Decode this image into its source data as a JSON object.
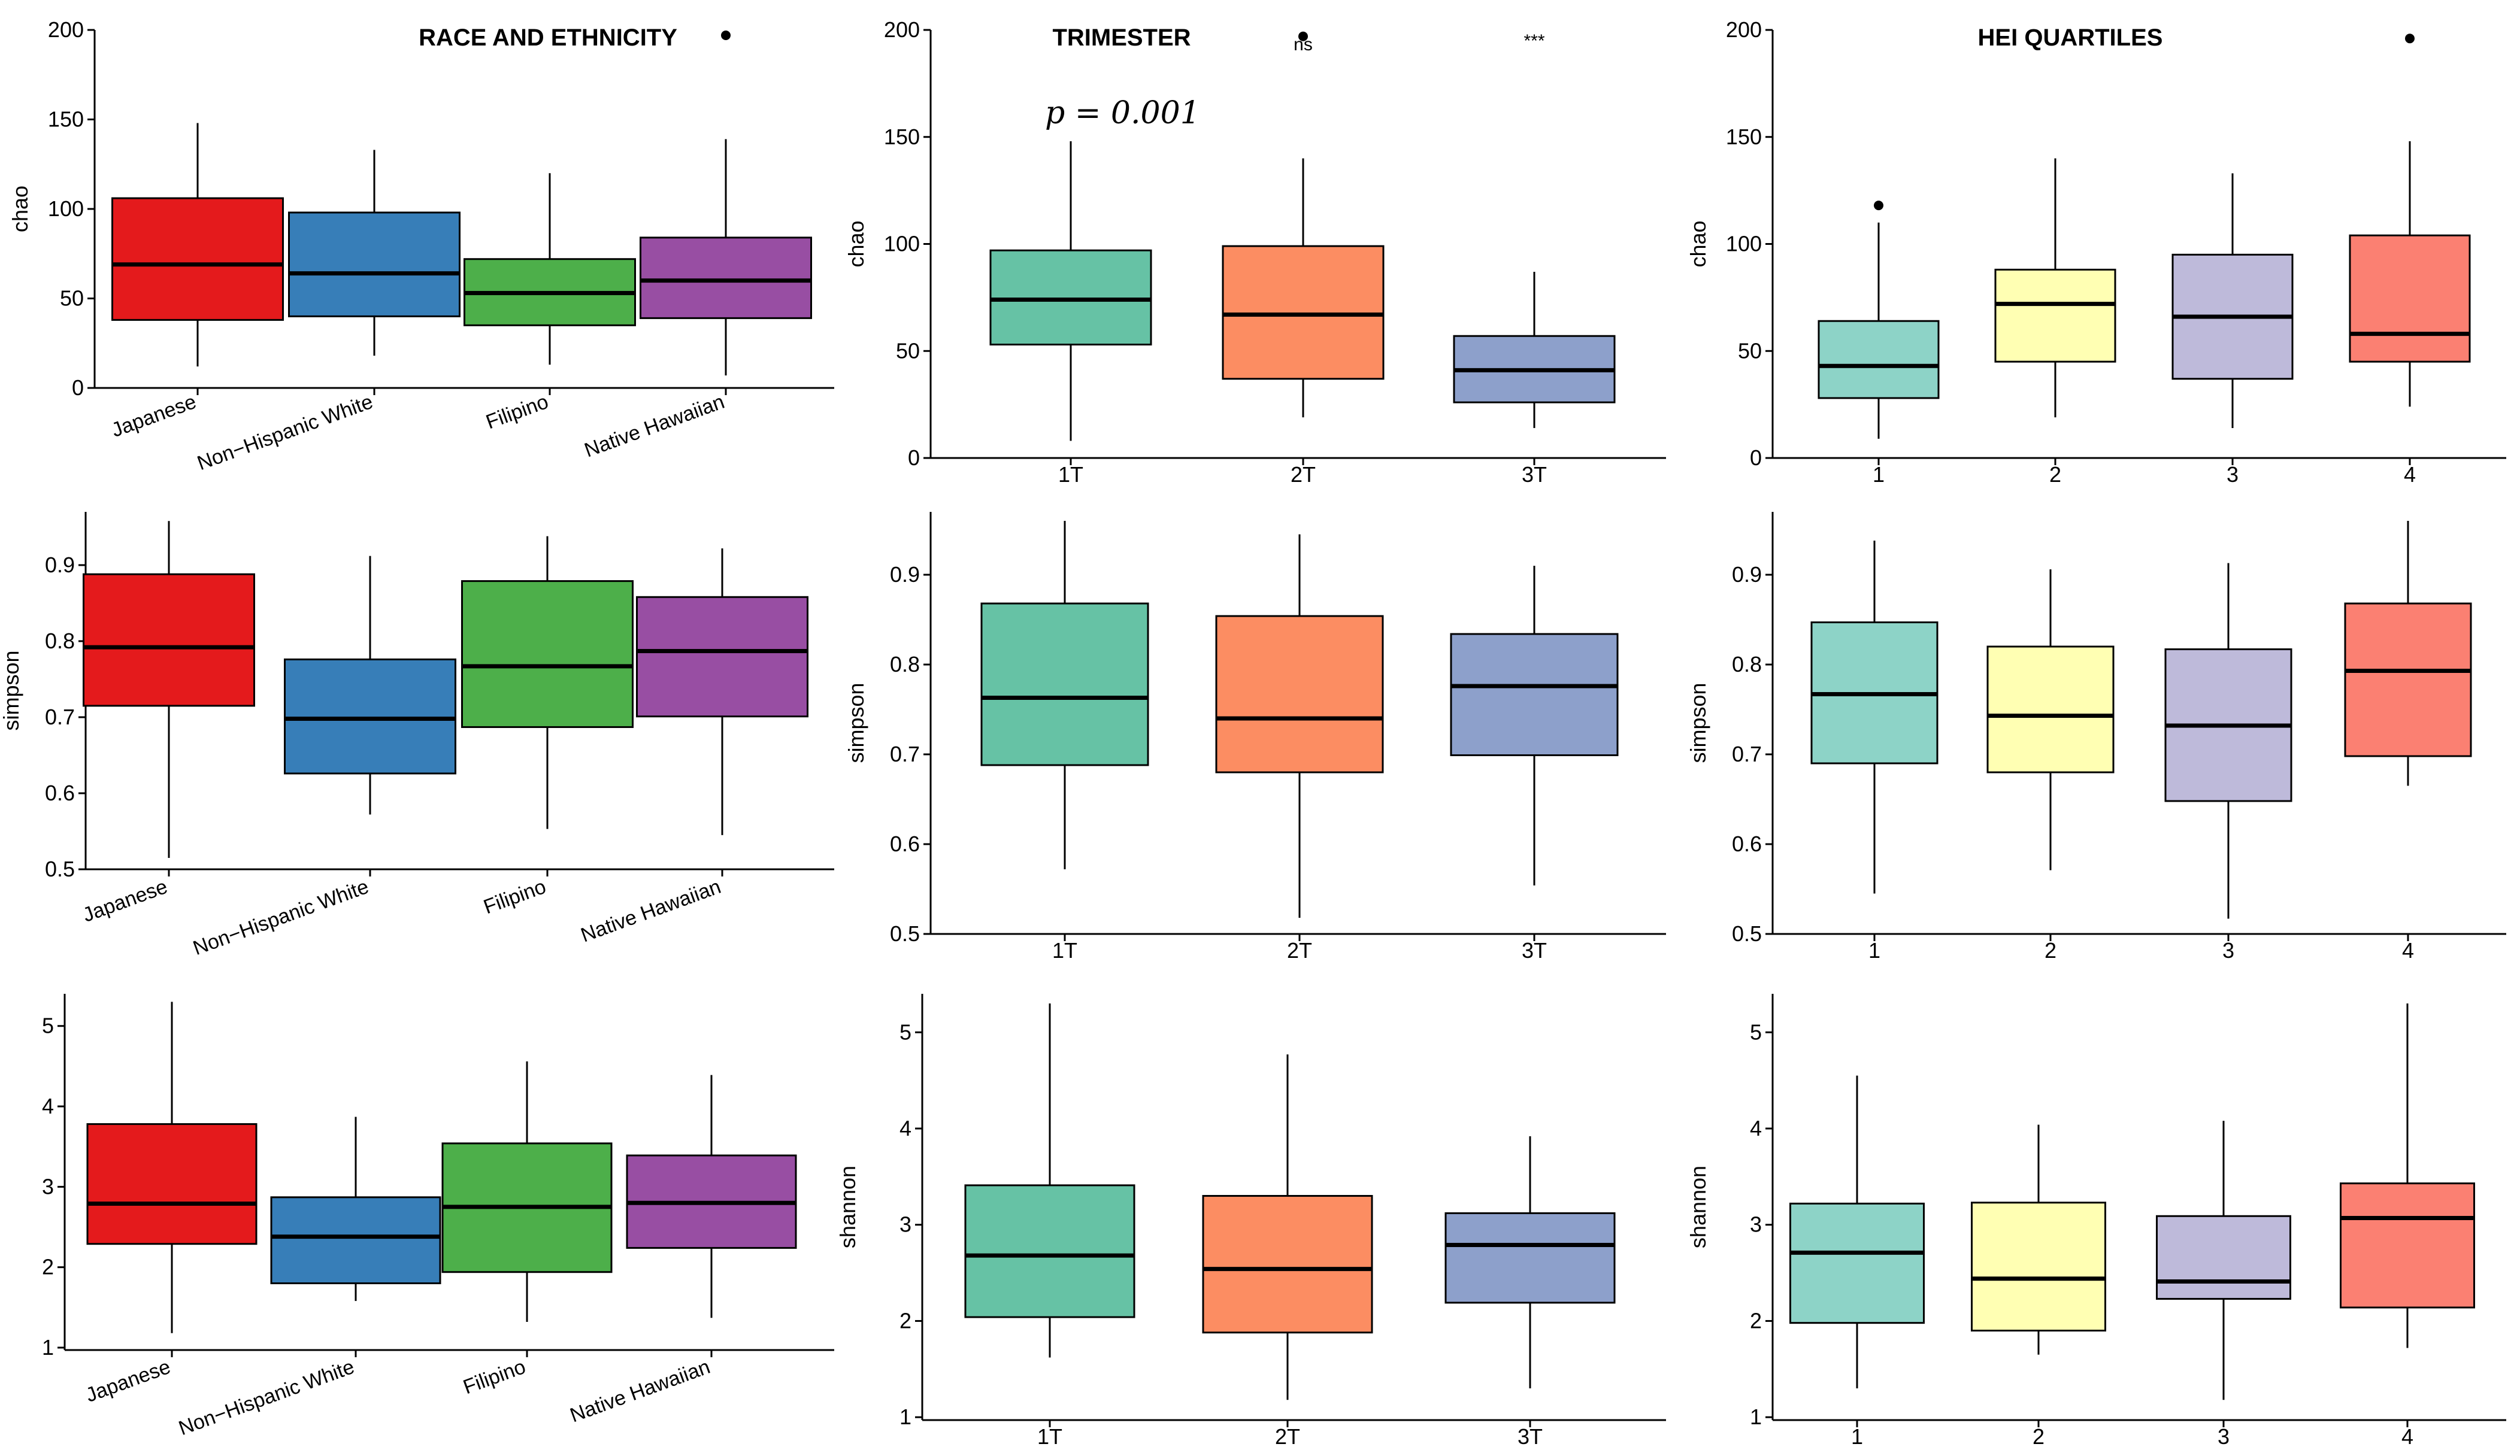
{
  "column_titles": [
    "RACE AND ETHNICITY",
    "TRIMESTER",
    "HEI QUARTILES"
  ],
  "annotations": {
    "p_value": "p = 0.001",
    "sig_2T": "ns",
    "sig_3T": "***"
  },
  "chart_data": [
    {
      "type": "box",
      "title": "RACE AND ETHNICITY",
      "ylabel": "chao",
      "ylim": [
        0,
        200
      ],
      "yticks": [
        0,
        50,
        100,
        150,
        200
      ],
      "rotated_labels": true,
      "categories": [
        "Japanese",
        "Non−Hispanic White",
        "Filipino",
        "Native Hawaiian"
      ],
      "colors": [
        "#e41a1c",
        "#377eb8",
        "#4daf4a",
        "#984ea3"
      ],
      "boxes": [
        {
          "min": 12,
          "q1": 38,
          "median": 69,
          "q3": 106,
          "max": 148,
          "outliers": []
        },
        {
          "min": 18,
          "q1": 40,
          "median": 64,
          "q3": 98,
          "max": 133,
          "outliers": []
        },
        {
          "min": 13,
          "q1": 35,
          "median": 53,
          "q3": 72,
          "max": 120,
          "outliers": []
        },
        {
          "min": 7,
          "q1": 39,
          "median": 60,
          "q3": 84,
          "max": 139,
          "outliers": [
            197
          ]
        }
      ]
    },
    {
      "type": "box",
      "title": "TRIMESTER",
      "ylabel": "chao",
      "ylim": [
        0,
        200
      ],
      "yticks": [
        0,
        50,
        100,
        150,
        200
      ],
      "rotated_labels": false,
      "categories": [
        "1T",
        "2T",
        "3T"
      ],
      "colors": [
        "#66c2a5",
        "#fc8d62",
        "#8da0cb"
      ],
      "boxes": [
        {
          "min": 8,
          "q1": 53,
          "median": 74,
          "q3": 97,
          "max": 148,
          "outliers": []
        },
        {
          "min": 19,
          "q1": 37,
          "median": 67,
          "q3": 99,
          "max": 140,
          "outliers": [
            197
          ]
        },
        {
          "min": 14,
          "q1": 26,
          "median": 41,
          "q3": 57,
          "max": 87,
          "outliers": []
        }
      ]
    },
    {
      "type": "box",
      "title": "HEI QUARTILES",
      "ylabel": "chao",
      "ylim": [
        0,
        200
      ],
      "yticks": [
        0,
        50,
        100,
        150,
        200
      ],
      "rotated_labels": false,
      "categories": [
        "1",
        "2",
        "3",
        "4"
      ],
      "colors": [
        "#8dd3c7",
        "#ffffb3",
        "#bebada",
        "#fb8072"
      ],
      "boxes": [
        {
          "min": 9,
          "q1": 28,
          "median": 43,
          "q3": 64,
          "max": 110,
          "outliers": [
            118
          ]
        },
        {
          "min": 19,
          "q1": 45,
          "median": 72,
          "q3": 88,
          "max": 140,
          "outliers": []
        },
        {
          "min": 14,
          "q1": 37,
          "median": 66,
          "q3": 95,
          "max": 133,
          "outliers": []
        },
        {
          "min": 24,
          "q1": 45,
          "median": 58,
          "q3": 104,
          "max": 148,
          "outliers": [
            196
          ]
        }
      ]
    },
    {
      "type": "box",
      "title": "",
      "ylabel": "simpson",
      "ylim": [
        0.5,
        0.97
      ],
      "yticks": [
        0.5,
        0.6,
        0.7,
        0.8,
        0.9
      ],
      "rotated_labels": true,
      "categories": [
        "Japanese",
        "Non−Hispanic White",
        "Filipino",
        "Native Hawaiian"
      ],
      "colors": [
        "#e41a1c",
        "#377eb8",
        "#4daf4a",
        "#984ea3"
      ],
      "boxes": [
        {
          "min": 0.515,
          "q1": 0.715,
          "median": 0.792,
          "q3": 0.888,
          "max": 0.958,
          "outliers": []
        },
        {
          "min": 0.572,
          "q1": 0.626,
          "median": 0.698,
          "q3": 0.776,
          "max": 0.912,
          "outliers": []
        },
        {
          "min": 0.553,
          "q1": 0.687,
          "median": 0.767,
          "q3": 0.879,
          "max": 0.938,
          "outliers": []
        },
        {
          "min": 0.545,
          "q1": 0.701,
          "median": 0.787,
          "q3": 0.858,
          "max": 0.922,
          "outliers": []
        }
      ]
    },
    {
      "type": "box",
      "title": "",
      "ylabel": "simpson",
      "ylim": [
        0.5,
        0.97
      ],
      "yticks": [
        0.5,
        0.6,
        0.7,
        0.8,
        0.9
      ],
      "rotated_labels": false,
      "categories": [
        "1T",
        "2T",
        "3T"
      ],
      "colors": [
        "#66c2a5",
        "#fc8d62",
        "#8da0cb"
      ],
      "boxes": [
        {
          "min": 0.572,
          "q1": 0.688,
          "median": 0.763,
          "q3": 0.868,
          "max": 0.96,
          "outliers": []
        },
        {
          "min": 0.518,
          "q1": 0.68,
          "median": 0.74,
          "q3": 0.854,
          "max": 0.945,
          "outliers": []
        },
        {
          "min": 0.554,
          "q1": 0.699,
          "median": 0.776,
          "q3": 0.834,
          "max": 0.91,
          "outliers": []
        }
      ]
    },
    {
      "type": "box",
      "title": "",
      "ylabel": "simpson",
      "ylim": [
        0.5,
        0.97
      ],
      "yticks": [
        0.5,
        0.6,
        0.7,
        0.8,
        0.9
      ],
      "rotated_labels": false,
      "categories": [
        "1",
        "2",
        "3",
        "4"
      ],
      "colors": [
        "#8dd3c7",
        "#ffffb3",
        "#bebada",
        "#fb8072"
      ],
      "boxes": [
        {
          "min": 0.545,
          "q1": 0.69,
          "median": 0.767,
          "q3": 0.847,
          "max": 0.938,
          "outliers": []
        },
        {
          "min": 0.571,
          "q1": 0.68,
          "median": 0.743,
          "q3": 0.82,
          "max": 0.906,
          "outliers": []
        },
        {
          "min": 0.517,
          "q1": 0.648,
          "median": 0.732,
          "q3": 0.817,
          "max": 0.913,
          "outliers": []
        },
        {
          "min": 0.665,
          "q1": 0.698,
          "median": 0.793,
          "q3": 0.868,
          "max": 0.96,
          "outliers": []
        }
      ]
    },
    {
      "type": "box",
      "title": "",
      "ylabel": "shannon",
      "ylim": [
        0.97,
        5.4
      ],
      "yticks": [
        1,
        2,
        3,
        4,
        5
      ],
      "rotated_labels": true,
      "categories": [
        "Japanese",
        "Non−Hispanic White",
        "Filipino",
        "Native Hawaiian"
      ],
      "colors": [
        "#e41a1c",
        "#377eb8",
        "#4daf4a",
        "#984ea3"
      ],
      "boxes": [
        {
          "min": 1.18,
          "q1": 2.29,
          "median": 2.79,
          "q3": 3.78,
          "max": 5.3,
          "outliers": []
        },
        {
          "min": 1.58,
          "q1": 1.8,
          "median": 2.38,
          "q3": 2.87,
          "max": 3.87,
          "outliers": []
        },
        {
          "min": 1.32,
          "q1": 1.94,
          "median": 2.75,
          "q3": 3.54,
          "max": 4.56,
          "outliers": []
        },
        {
          "min": 1.37,
          "q1": 2.24,
          "median": 2.8,
          "q3": 3.39,
          "max": 4.39,
          "outliers": []
        }
      ]
    },
    {
      "type": "box",
      "title": "",
      "ylabel": "shannon",
      "ylim": [
        0.97,
        5.4
      ],
      "yticks": [
        1,
        2,
        3,
        4,
        5
      ],
      "rotated_labels": false,
      "categories": [
        "1T",
        "2T",
        "3T"
      ],
      "colors": [
        "#66c2a5",
        "#fc8d62",
        "#8da0cb"
      ],
      "boxes": [
        {
          "min": 1.62,
          "q1": 2.04,
          "median": 2.68,
          "q3": 3.41,
          "max": 5.3,
          "outliers": []
        },
        {
          "min": 1.18,
          "q1": 1.88,
          "median": 2.54,
          "q3": 3.3,
          "max": 4.77,
          "outliers": []
        },
        {
          "min": 1.3,
          "q1": 2.19,
          "median": 2.79,
          "q3": 3.12,
          "max": 3.92,
          "outliers": []
        }
      ]
    },
    {
      "type": "box",
      "title": "",
      "ylabel": "shannon",
      "ylim": [
        0.97,
        5.4
      ],
      "yticks": [
        1,
        2,
        3,
        4,
        5
      ],
      "rotated_labels": false,
      "categories": [
        "1",
        "2",
        "3",
        "4"
      ],
      "colors": [
        "#8dd3c7",
        "#ffffb3",
        "#bebada",
        "#fb8072"
      ],
      "boxes": [
        {
          "min": 1.3,
          "q1": 1.98,
          "median": 2.71,
          "q3": 3.22,
          "max": 4.55,
          "outliers": []
        },
        {
          "min": 1.65,
          "q1": 1.9,
          "median": 2.44,
          "q3": 3.23,
          "max": 4.04,
          "outliers": []
        },
        {
          "min": 1.18,
          "q1": 2.23,
          "median": 2.41,
          "q3": 3.09,
          "max": 4.08,
          "outliers": []
        },
        {
          "min": 1.72,
          "q1": 2.14,
          "median": 3.07,
          "q3": 3.43,
          "max": 5.3,
          "outliers": []
        }
      ]
    }
  ]
}
